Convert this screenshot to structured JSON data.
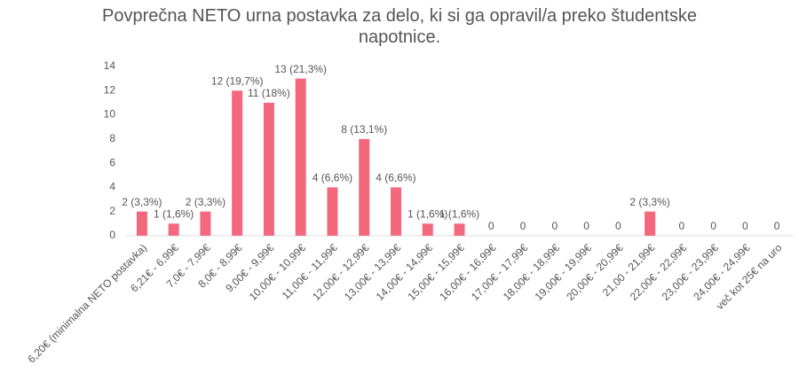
{
  "chart_data": {
    "type": "bar",
    "title": "Povprečna NETO urna postavka za delo, ki si ga opravil/a preko študentske napotnice.",
    "categories": [
      "6,20€ (minimalna NETO postavka)",
      "6,21€ - 6,99€",
      "7,0€ - 7,99€",
      "8,0€ - 8,99€",
      "9,00€ - 9,99€",
      "10,00€ - 10,99€",
      "11,00€ - 11,99€",
      "12,00€ - 12,99€",
      "13,00€ - 13,99€",
      "14,00€ - 14,99€",
      "15,00€ - 15,99€",
      "16,00€ - 16,99€",
      "17,00€ - 17,99€",
      "18,00€ - 18,99€",
      "19,00€ - 19,99€",
      "20,00€ - 20,99€",
      "21,00 - 21,99€",
      "22,00€ - 22,99€",
      "23,00€ - 23,99€",
      "24,00€ - 24,99€",
      "več kot 25€ na uro"
    ],
    "values": [
      2,
      1,
      2,
      12,
      11,
      13,
      4,
      8,
      4,
      1,
      1,
      0,
      0,
      0,
      0,
      0,
      2,
      0,
      0,
      0,
      0
    ],
    "value_labels": [
      "2 (3,3%)",
      "1 (1,6%)",
      "2 (3,3%)",
      "12 (19,7%)",
      "11 (18%)",
      "13 (21,3%)",
      "4 (6,6%)",
      "8 (13,1%)",
      "4 (6,6%)",
      "1 (1,6%)",
      "1 (1,6%)",
      "0",
      "0",
      "0",
      "0",
      "0",
      "2 (3,3%)",
      "0",
      "0",
      "0",
      "0"
    ],
    "color": "#f4687e",
    "ylim": [
      0,
      14
    ],
    "yticks": [
      0,
      2,
      4,
      6,
      8,
      10,
      12,
      14
    ],
    "grid": false
  }
}
